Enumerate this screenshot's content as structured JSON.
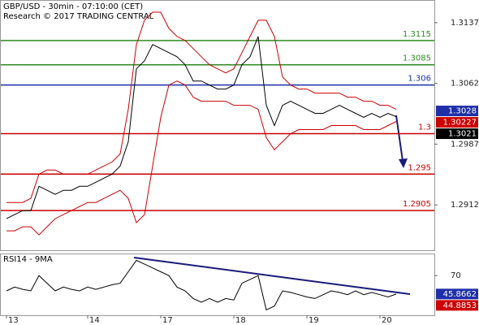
{
  "chart_data": [
    {
      "type": "line",
      "title": "GBP/USD - 30min - 07:10:00 (CET)",
      "subtitle": "Research © 2017 TRADING CENTRAL",
      "xlim": [
        -0.8,
        52.7
      ],
      "xticks": [
        {
          "value": 0,
          "label": "13"
        },
        {
          "value": 10,
          "label": "14"
        },
        {
          "value": 19,
          "label": "17"
        },
        {
          "value": 28,
          "label": "18"
        },
        {
          "value": 37,
          "label": "19"
        },
        {
          "value": 46,
          "label": "20"
        }
      ],
      "ylim": [
        1.2856,
        1.3165
      ],
      "yticks": [
        1.3137,
        1.3062,
        1.2987,
        1.2912
      ],
      "series": [
        {
          "name": "GBP/USD",
          "color": "#000000",
          "values": [
            1.2895,
            1.29,
            1.2905,
            1.2905,
            1.2935,
            1.293,
            1.2925,
            1.293,
            1.293,
            1.2935,
            1.2935,
            1.294,
            1.2945,
            1.295,
            1.296,
            1.299,
            1.308,
            1.309,
            1.311,
            1.3105,
            1.31,
            1.3095,
            1.3085,
            1.3065,
            1.3065,
            1.306,
            1.3055,
            1.3055,
            1.306,
            1.3085,
            1.3095,
            1.312,
            1.3035,
            1.301,
            1.3035,
            1.304,
            1.3035,
            1.303,
            1.3025,
            1.3025,
            1.303,
            1.3035,
            1.303,
            1.3025,
            1.302,
            1.3025,
            1.302,
            1.3025,
            1.3021
          ]
        },
        {
          "name": "Upper Band",
          "color": "#cc0000",
          "values": [
            1.2915,
            1.2915,
            1.2915,
            1.292,
            1.295,
            1.2955,
            1.2955,
            1.295,
            1.295,
            1.295,
            1.295,
            1.2955,
            1.296,
            1.2965,
            1.2975,
            1.303,
            1.311,
            1.314,
            1.315,
            1.315,
            1.313,
            1.312,
            1.3115,
            1.3105,
            1.3095,
            1.3085,
            1.308,
            1.3075,
            1.308,
            1.31,
            1.312,
            1.314,
            1.314,
            1.312,
            1.307,
            1.306,
            1.3055,
            1.3055,
            1.305,
            1.305,
            1.305,
            1.305,
            1.3045,
            1.3045,
            1.304,
            1.304,
            1.3035,
            1.3035,
            1.303
          ]
        },
        {
          "name": "Lower Band",
          "color": "#cc0000",
          "values": [
            1.288,
            1.288,
            1.2885,
            1.2885,
            1.2875,
            1.2885,
            1.2895,
            1.29,
            1.2905,
            1.291,
            1.2915,
            1.2915,
            1.292,
            1.2925,
            1.293,
            1.292,
            1.289,
            1.29,
            1.296,
            1.302,
            1.306,
            1.3065,
            1.306,
            1.3045,
            1.304,
            1.304,
            1.304,
            1.304,
            1.3035,
            1.3035,
            1.3035,
            1.303,
            1.2995,
            1.298,
            1.299,
            1.3,
            1.3005,
            1.3005,
            1.3005,
            1.3005,
            1.301,
            1.301,
            1.301,
            1.301,
            1.3005,
            1.3005,
            1.3005,
            1.301,
            1.3015
          ]
        }
      ],
      "levels": [
        {
          "value": 1.3115,
          "color": "#2e8b22"
        },
        {
          "value": 1.3085,
          "color": "#2e8b22"
        },
        {
          "value": 1.306,
          "color": "#1f2fa8"
        },
        {
          "value": 1.3,
          "color": "#cc0000"
        },
        {
          "value": 1.295,
          "color": "#cc0000"
        },
        {
          "value": 1.2905,
          "color": "#cc0000"
        }
      ],
      "price_tags": [
        {
          "value": 1.3028,
          "color": "#1f2fa8"
        },
        {
          "value": 1.30227,
          "color": "#cc0000"
        },
        {
          "value": 1.3021,
          "color": "#000000"
        }
      ]
    },
    {
      "type": "line",
      "title": "RSI14 - 9MA",
      "ylim": [
        18,
        99
      ],
      "yticks": [
        70
      ],
      "series": [
        {
          "name": "RSI14",
          "color": "#000000",
          "values": [
            50,
            55,
            52,
            50,
            70,
            60,
            50,
            55,
            52,
            50,
            55,
            52,
            55,
            58,
            60,
            75,
            90,
            85,
            80,
            75,
            70,
            55,
            50,
            40,
            35,
            40,
            35,
            40,
            38,
            60,
            65,
            70,
            25,
            30,
            50,
            48,
            45,
            42,
            40,
            45,
            50,
            48,
            45,
            50,
            45,
            48,
            45,
            42,
            45.8662
          ]
        }
      ],
      "price_tags": [
        {
          "value": 45.8662,
          "color": "#1f2fa8"
        },
        {
          "value": 44.8853,
          "color": "#cc0000"
        }
      ]
    }
  ]
}
